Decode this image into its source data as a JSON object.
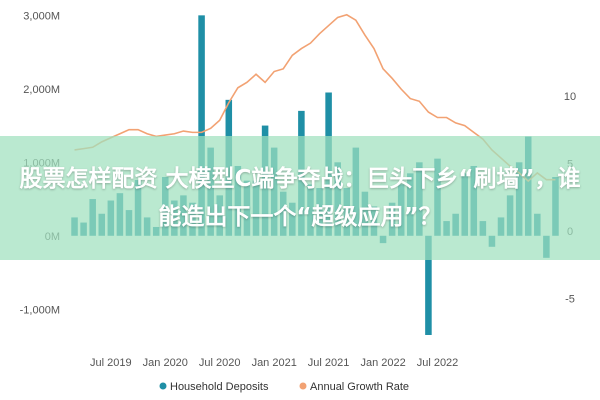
{
  "article_title": "股票怎样配资 大模型C端争夺战：巨头下乡“刷墙”，谁能造出下一个“超级应用”？",
  "colors": {
    "bar": "#1f8fa6",
    "line": "#f2a273",
    "overlay": "#a0e1be"
  },
  "chart_data": {
    "type": "bar+line",
    "legend_position": "bottom",
    "grid": false,
    "x_tick_labels": [
      "Jul 2019",
      "Jan 2020",
      "Jul 2020",
      "Jan 2021",
      "Jul 2021",
      "Jan 2022",
      "Jul 2022"
    ],
    "y_left": {
      "ticks": [
        "-1,000M",
        "0M",
        "1,000M",
        "2,000M",
        "3,000M"
      ],
      "range": [
        -1500,
        3100
      ]
    },
    "y_right": {
      "ticks": [
        "-5",
        "0",
        "5",
        "10"
      ],
      "range": [
        -8.5,
        16.5
      ]
    },
    "series": [
      {
        "name": "Household Deposits",
        "kind": "bar",
        "axis": "left",
        "values": [
          250,
          180,
          500,
          300,
          480,
          580,
          350,
          760,
          250,
          120,
          800,
          480,
          550,
          450,
          3000,
          1200,
          550,
          1850,
          950,
          750,
          750,
          1500,
          1200,
          600,
          450,
          1700,
          700,
          650,
          1950,
          1000,
          650,
          1200,
          600,
          400,
          -100,
          450,
          700,
          850,
          1000,
          -1350,
          1050,
          200,
          300,
          850,
          950,
          200,
          -150,
          250,
          550,
          1000,
          1350,
          300,
          -300,
          800
        ]
      },
      {
        "name": "Annual Growth Rate",
        "kind": "line",
        "axis": "right",
        "values": [
          6.0,
          6.1,
          6.2,
          6.6,
          6.9,
          7.2,
          7.5,
          7.5,
          7.2,
          7.0,
          7.1,
          7.2,
          7.4,
          7.3,
          7.3,
          7.6,
          8.2,
          9.5,
          10.6,
          11.0,
          11.6,
          11.0,
          11.8,
          12.0,
          13.0,
          13.5,
          13.9,
          14.6,
          15.2,
          15.8,
          16.0,
          15.6,
          14.5,
          13.5,
          12.0,
          11.3,
          10.5,
          9.8,
          9.6,
          8.8,
          8.4,
          8.4,
          8.0,
          7.8,
          7.3,
          6.8,
          6.0,
          5.4,
          4.8,
          4.3,
          3.7,
          4.3,
          3.8,
          3.8
        ]
      }
    ]
  }
}
